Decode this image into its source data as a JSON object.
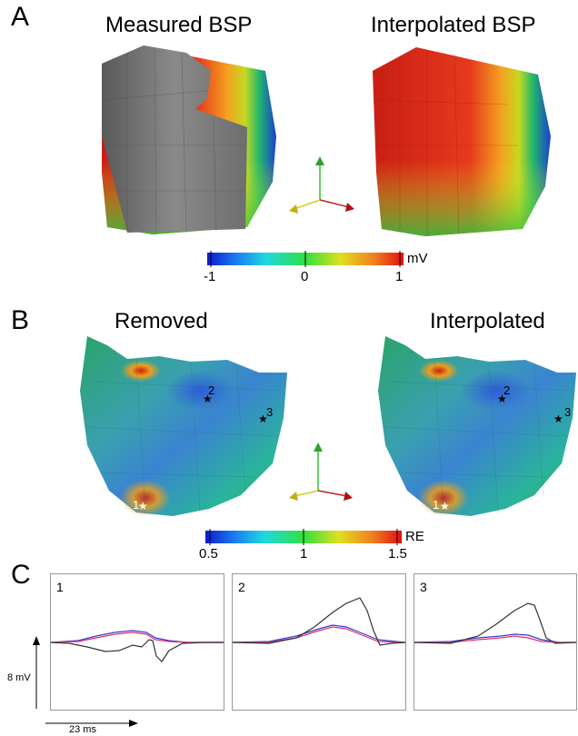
{
  "panels": {
    "a": {
      "letter": "A",
      "left_title": "Measured BSP",
      "right_title": "Interpolated BSP",
      "colorbar": {
        "ticks": [
          "-1",
          "0",
          "1"
        ],
        "unit": "mV"
      }
    },
    "b": {
      "letter": "B",
      "left_title": "Removed",
      "right_title": "Interpolated",
      "colorbar": {
        "ticks": [
          "0.5",
          "1",
          "1.5"
        ],
        "unit": "RE"
      },
      "markers": [
        "1",
        "2",
        "3"
      ]
    },
    "c": {
      "letter": "C",
      "traces": [
        {
          "label": "1"
        },
        {
          "label": "2"
        },
        {
          "label": "3"
        }
      ],
      "y_scale": "8 mV",
      "x_scale": "23 ms",
      "colors": {
        "measured": "#333333",
        "blue": "#3a3ad8",
        "red": "#e0306a"
      }
    }
  }
}
